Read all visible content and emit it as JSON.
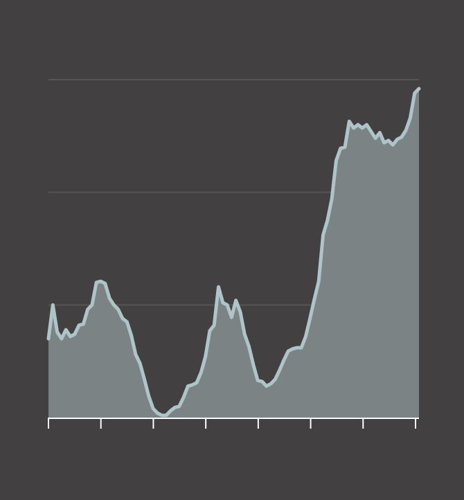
{
  "chart_data": {
    "type": "area",
    "title": "",
    "xlabel": "",
    "ylabel": "",
    "ylim": [
      0,
      3
    ],
    "y_gridlines": [
      1,
      2,
      3
    ],
    "grid": true,
    "x_ticks_count": 8,
    "x_tick_labels": [],
    "values": [
      0.7,
      1.0,
      0.76,
      0.7,
      0.78,
      0.72,
      0.74,
      0.82,
      0.83,
      0.96,
      1.0,
      1.2,
      1.21,
      1.19,
      1.06,
      1.0,
      0.96,
      0.88,
      0.85,
      0.73,
      0.56,
      0.48,
      0.34,
      0.19,
      0.08,
      0.04,
      0.02,
      0.02,
      0.06,
      0.09,
      0.1,
      0.18,
      0.28,
      0.29,
      0.31,
      0.4,
      0.54,
      0.77,
      0.82,
      1.16,
      1.02,
      1.0,
      0.89,
      1.04,
      0.94,
      0.74,
      0.63,
      0.47,
      0.33,
      0.32,
      0.28,
      0.3,
      0.34,
      0.42,
      0.51,
      0.59,
      0.61,
      0.62,
      0.62,
      0.72,
      0.88,
      1.05,
      1.21,
      1.62,
      1.75,
      1.94,
      2.28,
      2.39,
      2.4,
      2.63,
      2.57,
      2.6,
      2.57,
      2.6,
      2.54,
      2.48,
      2.53,
      2.44,
      2.46,
      2.42,
      2.47,
      2.49,
      2.55,
      2.66,
      2.88,
      2.92
    ],
    "colors": {
      "background": "#434041",
      "area_fill": "#7b8385",
      "line": "#adc4c9",
      "grid": "#575455",
      "axis": "#ffffff"
    }
  }
}
